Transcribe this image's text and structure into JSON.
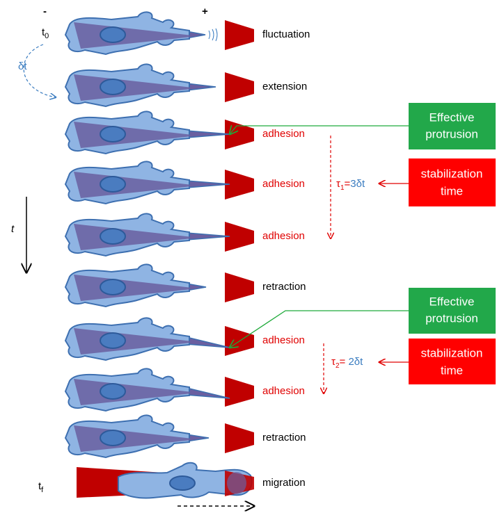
{
  "polarity": {
    "minus": "-",
    "plus": "+"
  },
  "start_time": {
    "base": "t",
    "sub": "0"
  },
  "step": "δt",
  "time_axis": "t",
  "end_time": {
    "base": "t",
    "sub": "f"
  },
  "rows": [
    {
      "label": "fluctuation",
      "color": "#000000"
    },
    {
      "label": "extension",
      "color": "#000000"
    },
    {
      "label": "adhesion",
      "color": "#e00000"
    },
    {
      "label": "adhesion",
      "color": "#e00000"
    },
    {
      "label": "adhesion",
      "color": "#e00000"
    },
    {
      "label": "retraction",
      "color": "#000000"
    },
    {
      "label": "adhesion",
      "color": "#e00000"
    },
    {
      "label": "adhesion",
      "color": "#e00000"
    },
    {
      "label": "retraction",
      "color": "#000000"
    },
    {
      "label": "migration",
      "color": "#000000"
    }
  ],
  "events": [
    {
      "protrusion": [
        "Effective",
        "protrusion"
      ],
      "stabilization": [
        "stabilization",
        "time"
      ],
      "tau": {
        "base": "τ",
        "sub": "1",
        "eq": "=",
        "rhs": "3δt"
      }
    },
    {
      "protrusion": [
        "Effective",
        "protrusion"
      ],
      "stabilization": [
        "stabilization",
        "time"
      ],
      "tau": {
        "base": "τ",
        "sub": "2",
        "eq": "= ",
        "rhs": "2δt"
      }
    }
  ]
}
